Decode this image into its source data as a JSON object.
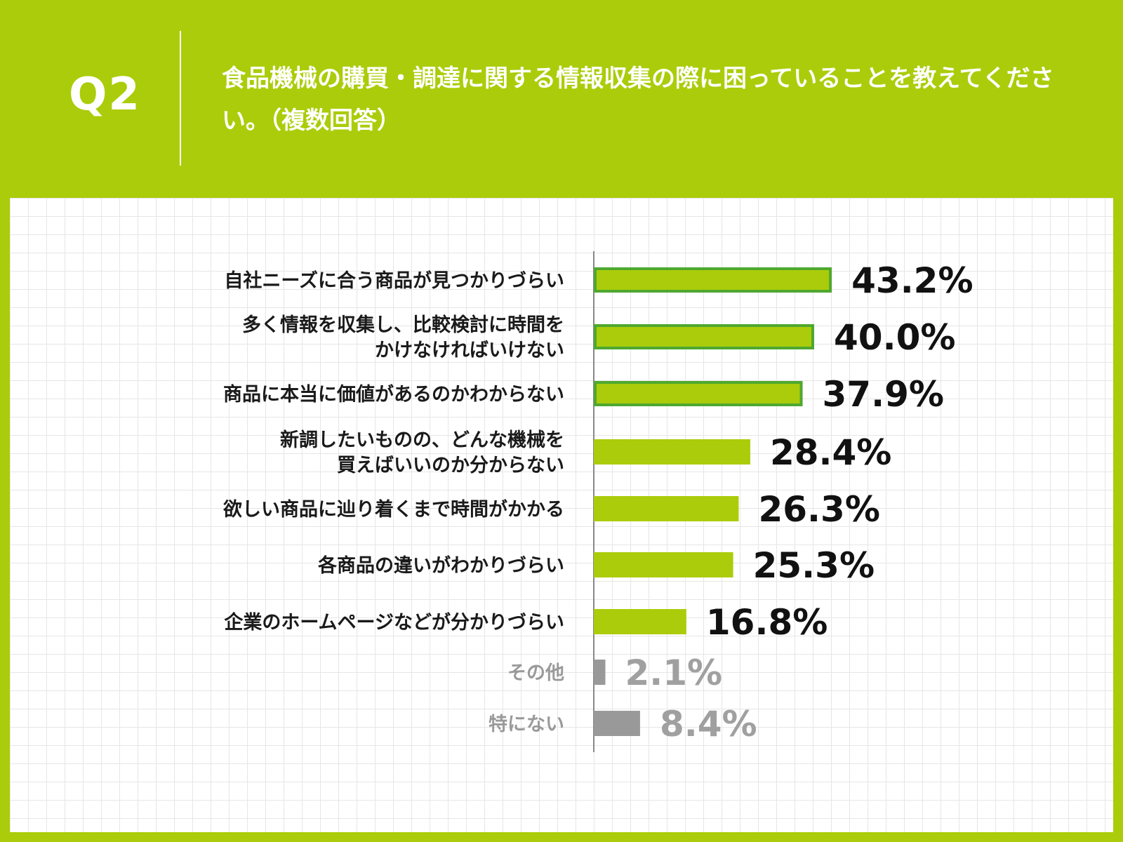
{
  "header": {
    "q_label": "Q2",
    "question": "食品機械の購買・調達に関する情報収集の際に困っていることを教えてください。（複数回答）"
  },
  "colors": {
    "background": "#abcc0a",
    "bar_main": "#abcc0a",
    "bar_highlight_border": "#4ea830",
    "bar_other": "#999999",
    "text_dark": "#1a1a1a",
    "text_gray": "#9a9a9a"
  },
  "chart_data": {
    "type": "bar",
    "orientation": "horizontal",
    "title": "",
    "xlabel": "",
    "ylabel": "",
    "xlim": [
      0,
      100
    ],
    "grid": true,
    "categories": [
      [
        "自社ニーズに合う商品が見つかりづらい"
      ],
      [
        "多く情報を収集し、比較検討に時間を",
        "かけなければいけない"
      ],
      [
        "商品に本当に価値があるのかわからない"
      ],
      [
        "新調したいものの、どんな機械を",
        "買えばいいのか分からない"
      ],
      [
        "欲しい商品に辿り着くまで時間がかかる"
      ],
      [
        "各商品の違いがわかりづらい"
      ],
      [
        "企業のホームページなどが分かりづらい"
      ],
      [
        "その他"
      ],
      [
        "特にない"
      ]
    ],
    "values": [
      43.2,
      40.0,
      37.9,
      28.4,
      26.3,
      25.3,
      16.8,
      2.1,
      8.4
    ],
    "value_labels": [
      "43.2%",
      "40.0%",
      "37.9%",
      "28.4%",
      "26.3%",
      "25.3%",
      "16.8%",
      "2.1%",
      "8.4%"
    ],
    "highlighted": [
      true,
      true,
      true,
      false,
      false,
      false,
      false,
      false,
      false
    ],
    "muted": [
      false,
      false,
      false,
      false,
      false,
      false,
      false,
      true,
      true
    ]
  }
}
